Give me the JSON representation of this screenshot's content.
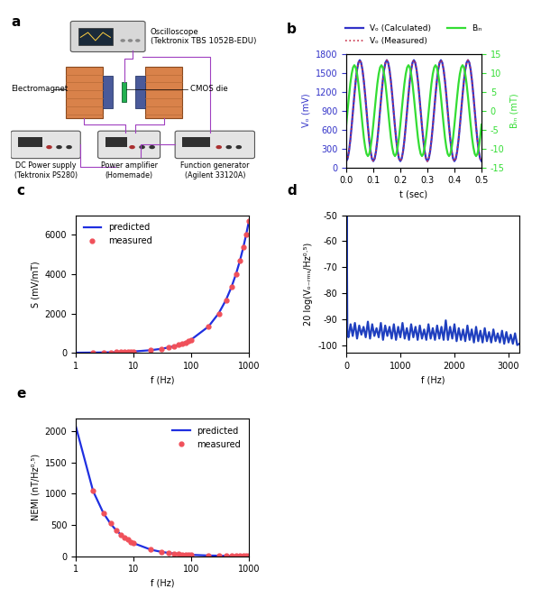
{
  "diagram": {
    "title": "a",
    "labels": {
      "oscilloscope": "Oscilloscope\n(Tektronix TBS 1052B-EDU)",
      "electromagnet": "Electromagnet",
      "die": "CMOS die",
      "power": "DC Power supply\n(Tektronix PS280)",
      "amplifier": "Power amplifier\n(Homemade)",
      "generator": "Function generator\n(Agilent 33120A)"
    }
  },
  "chart_data": [
    {
      "title": "b",
      "type": "line",
      "x_label": "t (sec)",
      "y_label": "Vₒ (mV)",
      "y2_label": "Bᵢₙ (mT)",
      "x": [
        0,
        0.005,
        0.01,
        0.015,
        0.02,
        0.025,
        0.03,
        0.035,
        0.04,
        0.045,
        0.05,
        0.055,
        0.06,
        0.065,
        0.07,
        0.075,
        0.08,
        0.085,
        0.09,
        0.095,
        0.1,
        0.105,
        0.11,
        0.115,
        0.12,
        0.125,
        0.13,
        0.135,
        0.14,
        0.145,
        0.15,
        0.155,
        0.16,
        0.165,
        0.17,
        0.175,
        0.18,
        0.185,
        0.19,
        0.195,
        0.2,
        0.205,
        0.21,
        0.215,
        0.22,
        0.225,
        0.23,
        0.235,
        0.24,
        0.245,
        0.25,
        0.255,
        0.26,
        0.265,
        0.27,
        0.275,
        0.28,
        0.285,
        0.29,
        0.295,
        0.3,
        0.305,
        0.31,
        0.315,
        0.32,
        0.325,
        0.33,
        0.335,
        0.34,
        0.345,
        0.35,
        0.355,
        0.36,
        0.365,
        0.37,
        0.375,
        0.38,
        0.385,
        0.39,
        0.395,
        0.4,
        0.405,
        0.41,
        0.415,
        0.42,
        0.425,
        0.43,
        0.435,
        0.44,
        0.445,
        0.45,
        0.455,
        0.46,
        0.465,
        0.47,
        0.475,
        0.48,
        0.485,
        0.49,
        0.495,
        0.5
      ],
      "xlim": [
        0,
        0.5
      ],
      "xticks": [
        {
          "value": 0,
          "label": "0.0"
        },
        0.1,
        0.2,
        0.3,
        0.4,
        0.5
      ],
      "ylim": [
        0,
        1800
      ],
      "yticks": [
        0,
        300,
        600,
        900,
        1200,
        1500,
        1800
      ],
      "y2lim": [
        -15,
        15
      ],
      "y2ticks": [
        -15,
        -10,
        -5,
        0,
        5,
        10,
        15
      ],
      "legend": "upper center",
      "grid": false,
      "series": [
        {
          "name": "Vₒ (Calculated)",
          "color": "#3232c8",
          "line_style": "solid",
          "values": [
            100,
            139,
            253,
            430,
            653,
            900,
            1147,
            1370,
            1547,
            1661,
            1700,
            1661,
            1547,
            1370,
            1147,
            900,
            653,
            430,
            253,
            139,
            100,
            139,
            253,
            430,
            653,
            900,
            1147,
            1370,
            1547,
            1661,
            1700,
            1661,
            1547,
            1370,
            1147,
            900,
            653,
            430,
            253,
            139,
            100,
            139,
            253,
            430,
            653,
            900,
            1147,
            1370,
            1547,
            1661,
            1700,
            1661,
            1547,
            1370,
            1147,
            900,
            653,
            430,
            253,
            139,
            100,
            139,
            253,
            430,
            653,
            900,
            1147,
            1370,
            1547,
            1661,
            1700,
            1661,
            1547,
            1370,
            1147,
            900,
            653,
            430,
            253,
            139,
            100,
            139,
            253,
            430,
            653,
            900,
            1147,
            1370,
            1547,
            1661,
            1700,
            1661,
            1547,
            1370,
            1147,
            900,
            653,
            430,
            253,
            139,
            100
          ]
        },
        {
          "name": "Vₒ (Measured)",
          "color": "#c8324a",
          "line_style": "dotted",
          "values": [
            100,
            139,
            253,
            430,
            653,
            900,
            1147,
            1370,
            1547,
            1661,
            1700,
            1661,
            1547,
            1370,
            1147,
            900,
            653,
            430,
            253,
            139,
            100,
            139,
            253,
            430,
            653,
            900,
            1147,
            1370,
            1547,
            1661,
            1700,
            1661,
            1547,
            1370,
            1147,
            900,
            653,
            430,
            253,
            139,
            100,
            139,
            253,
            430,
            653,
            900,
            1147,
            1370,
            1547,
            1661,
            1700,
            1661,
            1547,
            1370,
            1147,
            900,
            653,
            430,
            253,
            139,
            100,
            139,
            253,
            430,
            653,
            900,
            1147,
            1370,
            1547,
            1661,
            1700,
            1661,
            1547,
            1370,
            1147,
            900,
            653,
            430,
            253,
            139,
            100,
            139,
            253,
            430,
            653,
            900,
            1147,
            1370,
            1547,
            1661,
            1700,
            1661,
            1547,
            1370,
            1147,
            900,
            653,
            430,
            253,
            139,
            100
          ]
        },
        {
          "name": "Bᵢₙ",
          "color": "#33dd33",
          "line_style": "solid",
          "axis": "y2",
          "values": [
            -3.7,
            0,
            3.7,
            7.1,
            9.7,
            11.4,
            12,
            11.4,
            9.7,
            7.1,
            3.7,
            0,
            -3.7,
            -7.1,
            -9.7,
            -11.4,
            -12,
            -11.4,
            -9.7,
            -7.1,
            -3.7,
            0,
            3.7,
            7.1,
            9.7,
            11.4,
            12,
            11.4,
            9.7,
            7.1,
            3.7,
            0,
            -3.7,
            -7.1,
            -9.7,
            -11.4,
            -12,
            -11.4,
            -9.7,
            -7.1,
            -3.7,
            0,
            3.7,
            7.1,
            9.7,
            11.4,
            12,
            11.4,
            9.7,
            7.1,
            3.7,
            0,
            -3.7,
            -7.1,
            -9.7,
            -11.4,
            -12,
            -11.4,
            -9.7,
            -7.1,
            -3.7,
            0,
            3.7,
            7.1,
            9.7,
            11.4,
            12,
            11.4,
            9.7,
            7.1,
            3.7,
            0,
            -3.7,
            -7.1,
            -9.7,
            -11.4,
            -12,
            -11.4,
            -9.7,
            -7.1,
            -3.7,
            0,
            3.7,
            7.1,
            9.7,
            11.4,
            12,
            11.4,
            9.7,
            7.1,
            3.7,
            0,
            -3.7,
            -7.1,
            -9.7,
            -11.4,
            -12,
            -11.4,
            -9.7,
            -7.1,
            -3.7
          ]
        }
      ]
    },
    {
      "title": "c",
      "type": "line",
      "log": "x",
      "x_label": "f (Hz)",
      "y_label": "S (mV/mT)",
      "xlim": [
        1,
        1000
      ],
      "xticks": [
        1,
        10,
        100,
        1000
      ],
      "ylim": [
        0,
        7000
      ],
      "yticks": [
        0,
        2000,
        4000,
        6000
      ],
      "legend": "upper left",
      "grid": false,
      "series": [
        {
          "name": "predicted",
          "color": "#1f2fe0",
          "type": "line",
          "line_style": "solid",
          "x": [
            1,
            2,
            3,
            4,
            5,
            6,
            7,
            8,
            9,
            10,
            20,
            30,
            40,
            50,
            60,
            70,
            80,
            90,
            100,
            200,
            300,
            400,
            500,
            600,
            700,
            800,
            900,
            1000
          ],
          "values": [
            6.7,
            13.4,
            20.1,
            26.8,
            33.5,
            40.2,
            46.9,
            53.6,
            60.3,
            67,
            134,
            201,
            268,
            335,
            402,
            469,
            536,
            603,
            670,
            1340,
            2010,
            2680,
            3350,
            4020,
            4690,
            5360,
            6030,
            6700
          ]
        },
        {
          "name": "measured",
          "color": "#f0505a",
          "type": "scatter",
          "marker": "circle",
          "x": [
            2,
            3,
            4,
            5,
            6,
            7,
            8,
            9,
            10,
            20,
            30,
            40,
            50,
            60,
            70,
            80,
            90,
            100,
            200,
            300,
            400,
            500,
            600,
            700,
            800,
            900,
            1000
          ],
          "values": [
            14,
            20,
            27,
            34,
            40,
            47,
            54,
            60,
            67,
            135,
            200,
            270,
            335,
            400,
            470,
            535,
            600,
            670,
            1340,
            2000,
            2690,
            3350,
            4020,
            4700,
            5360,
            6030,
            6700
          ]
        }
      ]
    },
    {
      "title": "d",
      "type": "line",
      "x_label": "f (Hz)",
      "y_label": "20 log(Vₒ₋ᵣₘₛ/Hz⁰·⁵)",
      "x": [
        0,
        10,
        20,
        40,
        80,
        120,
        160,
        200,
        240,
        280,
        320,
        360,
        400,
        440,
        480,
        520,
        560,
        600,
        640,
        680,
        720,
        760,
        800,
        840,
        880,
        920,
        960,
        1000,
        1040,
        1080,
        1120,
        1160,
        1200,
        1240,
        1280,
        1320,
        1360,
        1400,
        1440,
        1480,
        1520,
        1560,
        1600,
        1640,
        1680,
        1720,
        1760,
        1800,
        1840,
        1880,
        1920,
        1960,
        2000,
        2040,
        2080,
        2120,
        2160,
        2200,
        2240,
        2280,
        2320,
        2360,
        2400,
        2440,
        2480,
        2520,
        2560,
        2600,
        2640,
        2680,
        2720,
        2760,
        2800,
        2840,
        2880,
        2920,
        2960,
        3000,
        3040,
        3080,
        3120,
        3160,
        3200
      ],
      "xlim": [
        0,
        3200
      ],
      "xticks": [
        0,
        1000,
        2000,
        3000
      ],
      "ylim": [
        -103,
        -50
      ],
      "yticks": [
        -100,
        -90,
        -80,
        -70,
        -60,
        -50
      ],
      "grid": false,
      "series": [
        {
          "color": "#1f3fbf",
          "line_style": "solid",
          "values": [
            -95,
            -50,
            -95,
            -97,
            -92,
            -96.5,
            -91.5,
            -97.5,
            -92.5,
            -96,
            -93,
            -97,
            -91,
            -97.5,
            -92,
            -96.5,
            -93.5,
            -97,
            -91.5,
            -98,
            -92.5,
            -96.5,
            -93,
            -97.5,
            -92,
            -98,
            -93,
            -97,
            -91.5,
            -97.5,
            -93.5,
            -98,
            -92,
            -97,
            -93,
            -98,
            -92.5,
            -97.5,
            -94,
            -98,
            -92,
            -97.5,
            -93.5,
            -98,
            -92.5,
            -97.5,
            -93,
            -98,
            -90.5,
            -98,
            -93,
            -97.5,
            -92,
            -98.5,
            -93.5,
            -98,
            -94,
            -98.5,
            -92.5,
            -98,
            -94,
            -99,
            -93,
            -98.5,
            -94.5,
            -99,
            -93.5,
            -98.5,
            -95,
            -99,
            -94,
            -98.5,
            -95.5,
            -99,
            -94.5,
            -99.5,
            -95,
            -99,
            -96,
            -99.5,
            -95.5,
            -100,
            -99.5
          ]
        }
      ]
    },
    {
      "title": "e",
      "type": "line",
      "log": "x",
      "x_label": "f (Hz)",
      "y_label": "NEMI (nT/Hz⁰·⁵)",
      "xlim": [
        1,
        1000
      ],
      "xticks": [
        1,
        10,
        100,
        1000
      ],
      "ylim": [
        0,
        2200
      ],
      "yticks": [
        0,
        500,
        1000,
        1500,
        2000
      ],
      "legend": "upper right",
      "grid": false,
      "series": [
        {
          "name": "predicted",
          "color": "#1f2fe0",
          "type": "line",
          "line_style": "solid",
          "x": [
            1,
            2,
            3,
            4,
            5,
            6,
            7,
            8,
            9,
            10,
            20,
            30,
            40,
            50,
            60,
            70,
            80,
            90,
            100,
            200,
            300,
            400,
            500,
            600,
            700,
            800,
            900,
            1000
          ],
          "values": [
            2080,
            1040,
            693,
            520,
            416,
            347,
            297,
            260,
            231,
            208,
            104,
            69,
            52,
            42,
            35,
            30,
            26,
            23,
            21,
            10,
            7,
            5,
            4,
            3.5,
            3,
            2.6,
            2.3,
            2.1
          ]
        },
        {
          "name": "measured",
          "color": "#f0505a",
          "type": "scatter",
          "marker": "circle",
          "x": [
            2,
            3,
            4,
            5,
            6,
            7,
            8,
            9,
            10,
            20,
            30,
            40,
            50,
            60,
            70,
            80,
            90,
            100,
            200,
            300,
            400,
            500,
            600,
            700,
            800,
            900,
            1000
          ],
          "values": [
            1045,
            690,
            525,
            415,
            345,
            300,
            262,
            230,
            210,
            103,
            70,
            52,
            42,
            35,
            30,
            26,
            23,
            21,
            10,
            7,
            5,
            4,
            3.5,
            3,
            2.6,
            2.3,
            2.1
          ]
        }
      ]
    }
  ]
}
